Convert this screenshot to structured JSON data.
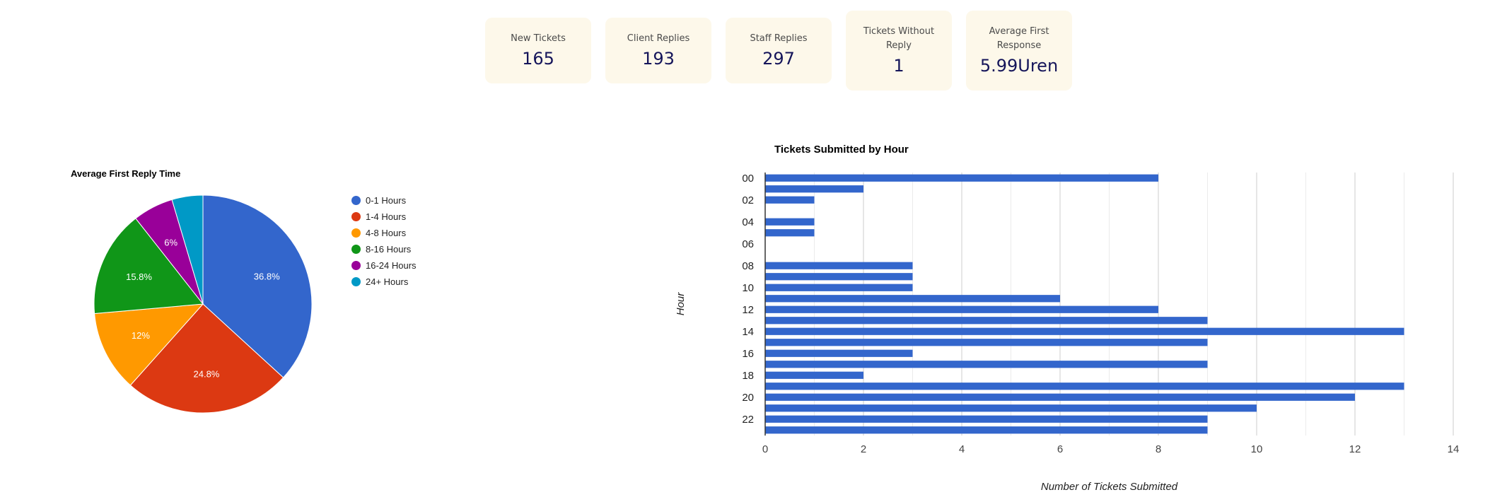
{
  "stats": [
    {
      "label": "New Tickets",
      "value": "165"
    },
    {
      "label": "Client Replies",
      "value": "193"
    },
    {
      "label": "Staff Replies",
      "value": "297"
    },
    {
      "label": "Tickets Without Reply",
      "value": "1"
    },
    {
      "label": "Average First Response",
      "value": "5.99Uren"
    }
  ],
  "chart_data": [
    {
      "type": "pie",
      "title": "Average First Reply Time",
      "categories": [
        "0-1 Hours",
        "1-4 Hours",
        "4-8 Hours",
        "8-16 Hours",
        "16-24 Hours",
        "24+ Hours"
      ],
      "values": [
        36.8,
        24.8,
        12,
        15.8,
        6,
        4.6
      ],
      "labels": [
        "36.8%",
        "24.8%",
        "12%",
        "15.8%",
        "6%",
        ""
      ],
      "colors": [
        "#3366cc",
        "#dc3912",
        "#ff9900",
        "#109618",
        "#990099",
        "#0099c6"
      ],
      "legend": "right"
    },
    {
      "type": "bar",
      "orientation": "horizontal",
      "title": "Tickets Submitted by Hour",
      "xlabel": "Number of Tickets Submitted",
      "ylabel": "Hour",
      "categories": [
        "00",
        "01",
        "02",
        "03",
        "04",
        "05",
        "06",
        "07",
        "08",
        "09",
        "10",
        "11",
        "12",
        "13",
        "14",
        "15",
        "16",
        "17",
        "18",
        "19",
        "20",
        "21",
        "22",
        "23"
      ],
      "category_tick_labels": [
        "00",
        "02",
        "04",
        "06",
        "08",
        "10",
        "12",
        "14",
        "16",
        "18",
        "20",
        "22"
      ],
      "values": [
        8,
        2,
        1,
        0,
        1,
        1,
        0,
        0,
        3,
        3,
        3,
        6,
        8,
        9,
        13,
        9,
        3,
        9,
        2,
        13,
        12,
        10,
        9,
        9
      ],
      "xlim": [
        0,
        14
      ],
      "xticks": [
        0,
        2,
        4,
        6,
        8,
        10,
        12,
        14
      ],
      "grid": true,
      "color": "#3366cc"
    }
  ]
}
